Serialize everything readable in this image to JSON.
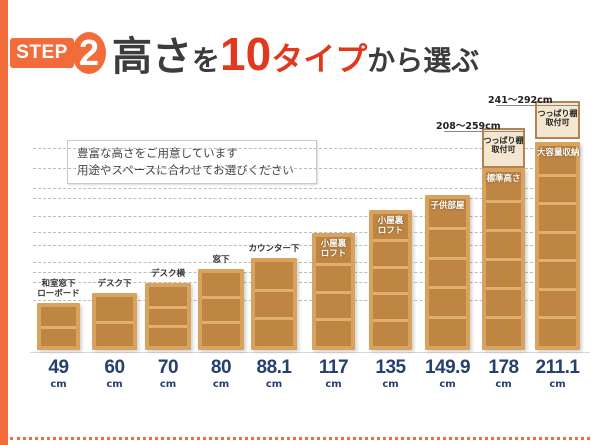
{
  "header": {
    "step_word": "STEP",
    "step_number": "2",
    "title_parts": [
      "高さ",
      "を",
      "10",
      "タイプ",
      "から選ぶ"
    ]
  },
  "note": {
    "line1": "豊富な高さをご用意しています",
    "line2": "用途やスペースに合わせてお選びください"
  },
  "shelves": [
    {
      "height": "49",
      "unit": "cm",
      "label": "和室窓下\nローボード",
      "shelves_count": 2
    },
    {
      "height": "60",
      "unit": "cm",
      "label": "デスク下",
      "shelves_count": 2
    },
    {
      "height": "70",
      "unit": "cm",
      "label": "デスク横",
      "shelves_count": 3
    },
    {
      "height": "80",
      "unit": "cm",
      "label": "窓下",
      "shelves_count": 3
    },
    {
      "height": "88.1",
      "unit": "cm",
      "label": "カウンター下",
      "shelves_count": 3
    },
    {
      "height": "117",
      "unit": "cm",
      "label": "小屋裏\nロフト",
      "shelves_count": 4
    },
    {
      "height": "135",
      "unit": "cm",
      "label": "小屋裏\nロフト",
      "shelves_count": 5
    },
    {
      "height": "149.9",
      "unit": "cm",
      "label": "子供部屋",
      "shelves_count": 5
    },
    {
      "height": "178",
      "unit": "cm",
      "label": "標準高さ",
      "shelves_count": 6
    },
    {
      "height": "211.1",
      "unit": "cm",
      "label": "大容量収納",
      "shelves_count": 7
    }
  ],
  "tension": [
    {
      "range": "208〜259cm",
      "label": "つっぱり棚\n取付可"
    },
    {
      "range": "241〜292cm",
      "label": "つっぱり棚\n取付可"
    }
  ],
  "colors": {
    "accent_orange": "#f26b3a",
    "title_red": "#e03a1e",
    "value_navy": "#24406f",
    "wood_light": "#d8a35e",
    "wood_dark": "#bf8542"
  }
}
